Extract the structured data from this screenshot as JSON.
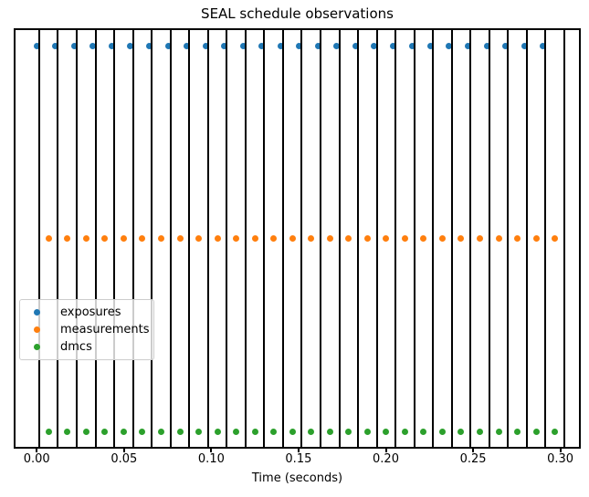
{
  "chart_data": {
    "type": "scatter",
    "title": "SEAL schedule observations",
    "xlabel": "Time (seconds)",
    "xlim": [
      -0.0132,
      0.3117
    ],
    "ylim": [
      -0.045,
      1.045
    ],
    "xticks": [
      0.0,
      0.05,
      0.1,
      0.15,
      0.2,
      0.25,
      0.3
    ],
    "xtick_labels": [
      "0.00",
      "0.05",
      "0.10",
      "0.15",
      "0.20",
      "0.25",
      "0.30"
    ],
    "grid": false,
    "legend_position": "center-left",
    "axis_color": "#000000",
    "vlines": {
      "color": "#000000",
      "times": [
        0.0014,
        0.0121,
        0.0229,
        0.0336,
        0.0444,
        0.0551,
        0.0659,
        0.0766,
        0.0873,
        0.0981,
        0.1088,
        0.1196,
        0.1303,
        0.1411,
        0.1518,
        0.1625,
        0.1733,
        0.184,
        0.1948,
        0.2055,
        0.2163,
        0.227,
        0.2377,
        0.2485,
        0.2592,
        0.27,
        0.2807,
        0.2915,
        0.3022
      ]
    },
    "series": [
      {
        "name": "exposures",
        "color": "#1f77b4",
        "y": 1.0,
        "times": [
          0.0,
          0.0107,
          0.0215,
          0.0322,
          0.043,
          0.0537,
          0.0645,
          0.0752,
          0.0859,
          0.0967,
          0.1074,
          0.1182,
          0.1289,
          0.1397,
          0.1504,
          0.1611,
          0.1719,
          0.1826,
          0.1934,
          0.2041,
          0.2149,
          0.2256,
          0.2363,
          0.2471,
          0.2578,
          0.2686,
          0.2793,
          0.2901
        ]
      },
      {
        "name": "measurements",
        "color": "#ff7f0e",
        "y": 0.5,
        "times": [
          0.0068,
          0.0175,
          0.0282,
          0.039,
          0.0497,
          0.0605,
          0.0712,
          0.082,
          0.0927,
          0.1035,
          0.1142,
          0.1249,
          0.1357,
          0.1464,
          0.1572,
          0.1679,
          0.1787,
          0.1894,
          0.2002,
          0.2109,
          0.2216,
          0.2324,
          0.2431,
          0.2539,
          0.2646,
          0.2754,
          0.2861,
          0.2969
        ]
      },
      {
        "name": "dmcs",
        "color": "#2ca02c",
        "y": 0.0,
        "times": [
          0.0068,
          0.0175,
          0.0282,
          0.039,
          0.0497,
          0.0605,
          0.0712,
          0.082,
          0.0927,
          0.1035,
          0.1142,
          0.1249,
          0.1357,
          0.1464,
          0.1572,
          0.1679,
          0.1787,
          0.1894,
          0.2002,
          0.2109,
          0.2216,
          0.2324,
          0.2431,
          0.2539,
          0.2646,
          0.2754,
          0.2861,
          0.2969
        ]
      }
    ]
  }
}
